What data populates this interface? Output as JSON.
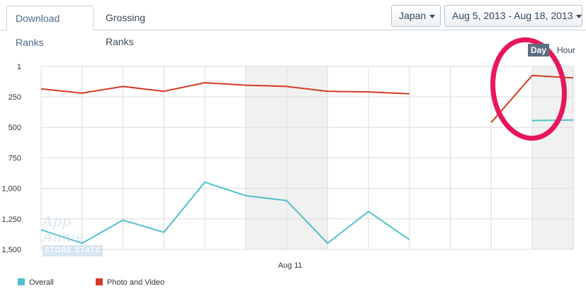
{
  "tabs": [
    {
      "label": "Download Ranks",
      "active": true
    },
    {
      "label": "Grossing Ranks",
      "active": false
    }
  ],
  "filters": {
    "country": "Japan",
    "date_range": "Aug 5, 2013 - Aug 18, 2013"
  },
  "granularity": {
    "day": "Day",
    "hour": "Hour",
    "selected": "Day"
  },
  "watermark": {
    "line1": "App Annie",
    "line2": "STORE STATS"
  },
  "colors": {
    "overall": "#4fc1c9",
    "photo": "#d33a26",
    "highlight": "#e8175d"
  },
  "chart_data": {
    "type": "line",
    "y_reversed": true,
    "ylim": [
      1,
      1500
    ],
    "yticks": [
      1,
      250,
      500,
      750,
      1000,
      1250,
      1500
    ],
    "ytick_labels": [
      "1",
      "250",
      "500",
      "750",
      "1,000",
      "1,250",
      "1,500"
    ],
    "x": [
      "2013-08-05",
      "2013-08-06",
      "2013-08-07",
      "2013-08-08",
      "2013-08-09",
      "2013-08-10",
      "2013-08-11",
      "2013-08-12",
      "2013-08-13",
      "2013-08-14",
      "2013-08-15",
      "2013-08-16",
      "2013-08-17",
      "2013-08-18"
    ],
    "xtick_labels": [
      {
        "x": "2013-08-11",
        "label": "Aug 11"
      }
    ],
    "shaded_ranges": [
      [
        "2013-08-10",
        "2013-08-12"
      ],
      "2013-08-17 to 2013-08-19"
    ],
    "series": [
      {
        "name": "Overall",
        "color": "#4fc1c9",
        "values": [
          1340,
          1450,
          1260,
          1360,
          950,
          1060,
          1100,
          1450,
          1190,
          1420,
          null,
          null,
          445,
          440
        ]
      },
      {
        "name": "Photo and Video",
        "color": "#d33a26",
        "values": [
          185,
          220,
          165,
          205,
          135,
          155,
          165,
          205,
          210,
          225,
          null,
          460,
          75,
          95
        ]
      }
    ],
    "legend_position": "bottom-left",
    "grid": true
  }
}
